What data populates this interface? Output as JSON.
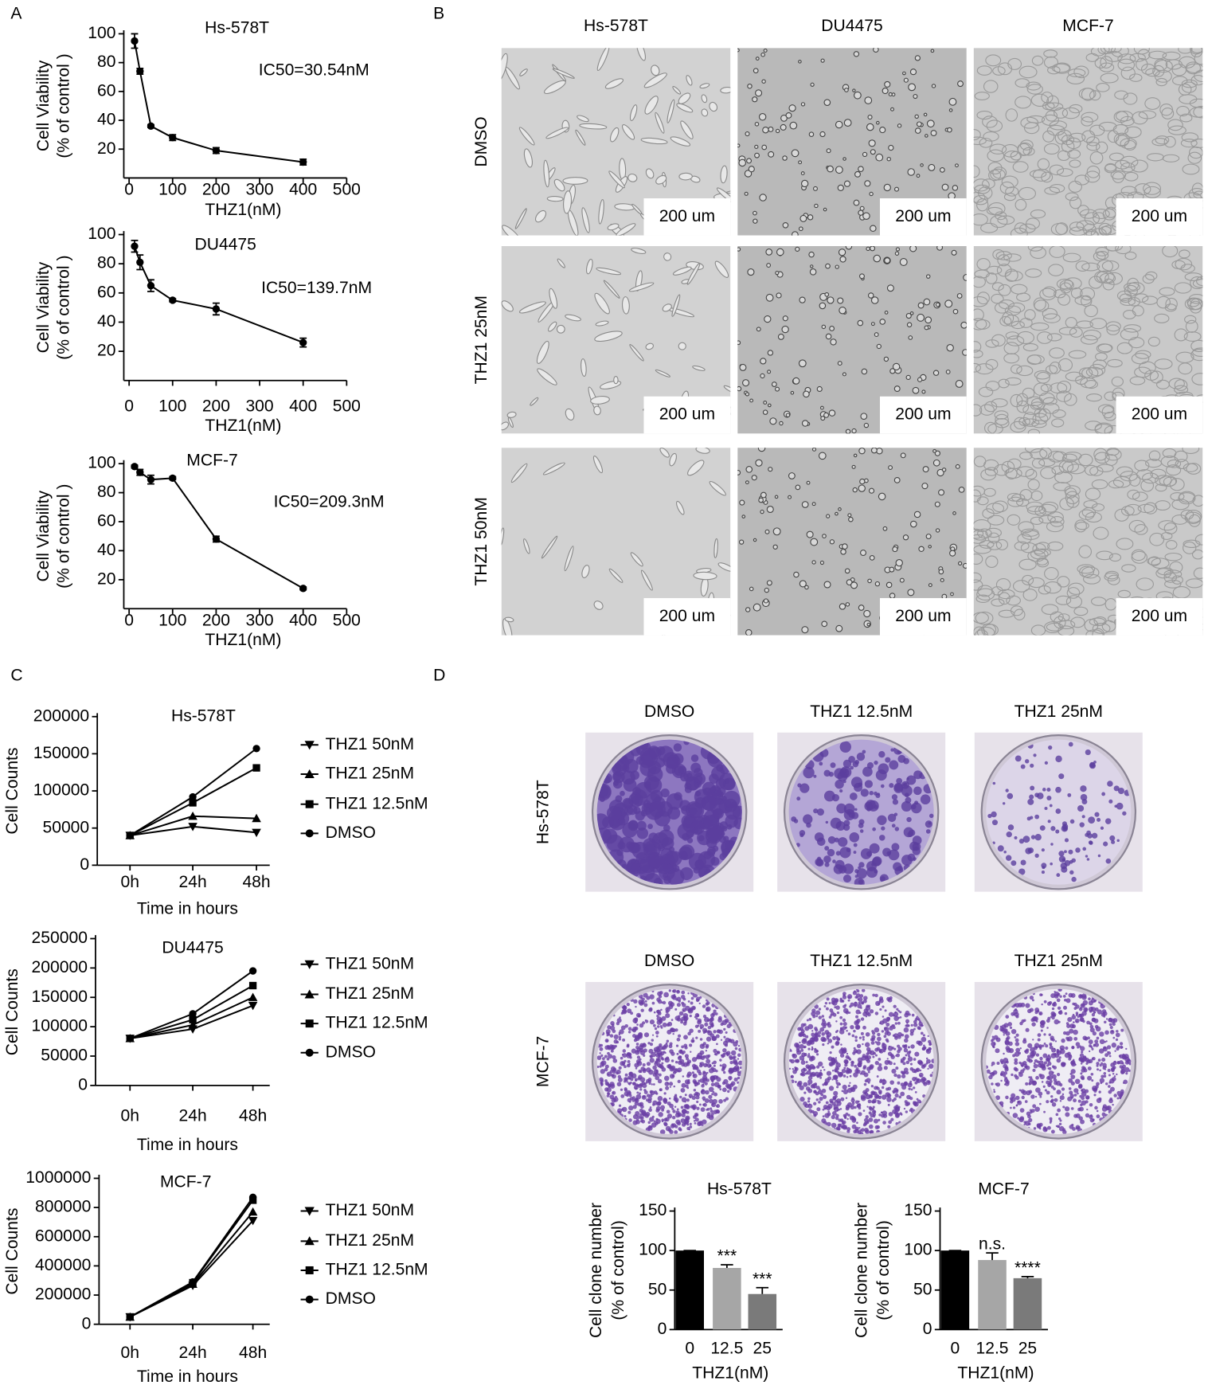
{
  "panel_labels": [
    "A",
    "B",
    "C",
    "D"
  ],
  "micrographs": {
    "columns": [
      "Hs-578T",
      "DU4475",
      "MCF-7"
    ],
    "rows": [
      "DMSO",
      "THZ1 25nM",
      "THZ1 50nM"
    ],
    "scale_bar": "200 um"
  },
  "plates": {
    "columns": [
      "DMSO",
      "THZ1 12.5nM",
      "THZ1 25nM"
    ],
    "rows": [
      "Hs-578T",
      "MCF-7"
    ]
  },
  "chart_data": [
    {
      "type": "line",
      "title": "Hs-578T",
      "annotation": "IC50=30.54nM",
      "x_label": "THZ1(nM)",
      "y_label": [
        "Cell Viability",
        "(% of control )"
      ],
      "x": [
        12.5,
        25,
        50,
        100,
        200,
        400
      ],
      "xlim": [
        0,
        500
      ],
      "xticks": [
        0,
        100,
        200,
        300,
        400,
        500
      ],
      "ylim": [
        0,
        100
      ],
      "yticks": [
        20,
        40,
        60,
        80,
        100
      ],
      "values": [
        95,
        74,
        36,
        28,
        19,
        11
      ],
      "errors": [
        5,
        2,
        1,
        2,
        2,
        2
      ],
      "color": "#000000",
      "marker": "circle"
    },
    {
      "type": "line",
      "title": "DU4475",
      "annotation": "IC50=139.7nM",
      "x_label": "THZ1(nM)",
      "y_label": [
        "Cell Viability",
        "(% of control )"
      ],
      "x": [
        12.5,
        25,
        50,
        100,
        200,
        400
      ],
      "xlim": [
        0,
        500
      ],
      "xticks": [
        0,
        100,
        200,
        300,
        400,
        500
      ],
      "ylim": [
        0,
        100
      ],
      "yticks": [
        20,
        40,
        60,
        80,
        100
      ],
      "values": [
        92,
        81,
        65,
        55,
        49,
        26
      ],
      "errors": [
        4,
        5,
        4,
        1,
        4,
        3
      ],
      "color": "#000000",
      "marker": "circle"
    },
    {
      "type": "line",
      "title": "MCF-7",
      "annotation": "IC50=209.3nM",
      "x_label": "THZ1(nM)",
      "y_label": [
        "Cell Viability",
        "(% of control )"
      ],
      "x": [
        12.5,
        25,
        50,
        100,
        200,
        400
      ],
      "xlim": [
        0,
        500
      ],
      "xticks": [
        0,
        100,
        200,
        300,
        400,
        500
      ],
      "ylim": [
        0,
        100
      ],
      "yticks": [
        20,
        40,
        60,
        80,
        100
      ],
      "values": [
        98,
        94,
        89,
        90,
        48,
        14
      ],
      "errors": [
        1,
        2,
        3,
        1,
        2,
        1
      ],
      "color": "#000000",
      "marker": "circle"
    },
    {
      "type": "line",
      "title": "Hs-578T",
      "x_label": "Time in hours",
      "y_label": "Cell Counts",
      "categories": [
        "0h",
        "24h",
        "48h"
      ],
      "ylim": [
        0,
        200000
      ],
      "yticks": [
        0,
        50000,
        100000,
        150000,
        200000
      ],
      "series": [
        {
          "name": "THZ1 50nM",
          "color": "#000000",
          "marker": "triangle-down",
          "values": [
            40000,
            52000,
            44000
          ]
        },
        {
          "name": "THZ1 25nM",
          "color": "#000000",
          "marker": "triangle-up",
          "values": [
            40000,
            66000,
            63000
          ]
        },
        {
          "name": "THZ1 12.5nM",
          "color": "#000000",
          "marker": "square",
          "values": [
            40000,
            84000,
            131000
          ]
        },
        {
          "name": "DMSO",
          "color": "#000000",
          "marker": "circle",
          "values": [
            40000,
            92000,
            157000
          ]
        }
      ]
    },
    {
      "type": "line",
      "title": "DU4475",
      "x_label": "Time in hours",
      "y_label": "Cell Counts",
      "categories": [
        "0h",
        "24h",
        "48h"
      ],
      "ylim": [
        0,
        250000
      ],
      "yticks": [
        0,
        50000,
        100000,
        150000,
        200000,
        250000
      ],
      "series": [
        {
          "name": "THZ1 50nM",
          "color": "#000000",
          "marker": "triangle-down",
          "values": [
            80000,
            96000,
            136000
          ]
        },
        {
          "name": "THZ1 25nM",
          "color": "#000000",
          "marker": "triangle-up",
          "values": [
            80000,
            103000,
            150000
          ]
        },
        {
          "name": "THZ1 12.5nM",
          "color": "#000000",
          "marker": "square",
          "values": [
            80000,
            112000,
            170000
          ]
        },
        {
          "name": "DMSO",
          "color": "#000000",
          "marker": "circle",
          "values": [
            80000,
            122000,
            195000
          ]
        }
      ]
    },
    {
      "type": "line",
      "title": "MCF-7",
      "x_label": "Time in hours",
      "y_label": "Cell Counts",
      "categories": [
        "0h",
        "24h",
        "48h"
      ],
      "ylim": [
        0,
        1000000
      ],
      "yticks": [
        0,
        200000,
        400000,
        600000,
        800000,
        1000000
      ],
      "series": [
        {
          "name": "THZ1 50nM",
          "color": "#000000",
          "marker": "triangle-down",
          "values": [
            50000,
            265000,
            710000
          ]
        },
        {
          "name": "THZ1 25nM",
          "color": "#000000",
          "marker": "triangle-up",
          "values": [
            50000,
            275000,
            770000
          ]
        },
        {
          "name": "THZ1 12.5nM",
          "color": "#000000",
          "marker": "square",
          "values": [
            50000,
            285000,
            850000
          ]
        },
        {
          "name": "DMSO",
          "color": "#000000",
          "marker": "circle",
          "values": [
            50000,
            290000,
            870000
          ]
        }
      ]
    },
    {
      "type": "bar",
      "title": "Hs-578T",
      "x_label": "THZ1(nM)",
      "y_label": [
        "Cell clone number",
        "(% of control)"
      ],
      "categories": [
        "0",
        "12.5",
        "25"
      ],
      "values": [
        100,
        78,
        45
      ],
      "errors": [
        0,
        4,
        8
      ],
      "colors": [
        "#000000",
        "#a6a6a6",
        "#7a7a7a"
      ],
      "annotations": [
        null,
        "***",
        "***"
      ],
      "ylim": [
        0,
        150
      ],
      "yticks": [
        0,
        50,
        100,
        150
      ]
    },
    {
      "type": "bar",
      "title": "MCF-7",
      "x_label": "THZ1(nM)",
      "y_label": [
        "Cell clone number",
        "(% of control)"
      ],
      "categories": [
        "0",
        "12.5",
        "25"
      ],
      "values": [
        100,
        88,
        65
      ],
      "errors": [
        0,
        9,
        2
      ],
      "colors": [
        "#000000",
        "#a6a6a6",
        "#7a7a7a"
      ],
      "annotations": [
        null,
        "n.s.",
        "****"
      ],
      "ylim": [
        0,
        150
      ],
      "yticks": [
        0,
        50,
        100,
        150
      ]
    }
  ]
}
